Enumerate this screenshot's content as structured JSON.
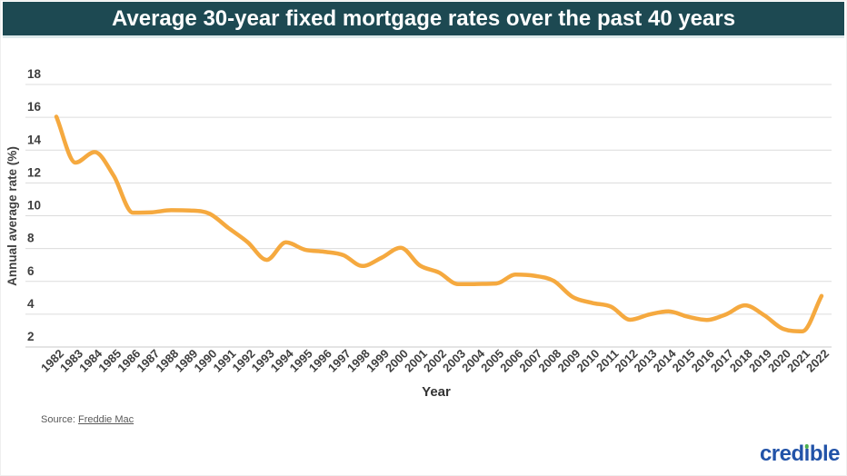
{
  "header": {
    "title": "Average 30-year fixed mortgage rates over the past 40 years",
    "bg_color": "#1D4952",
    "text_color": "#FFFFFF"
  },
  "chart_data": {
    "type": "line",
    "title": "Average 30-year fixed mortgage rates over the past 40 years",
    "xlabel": "Year",
    "ylabel": "Annual average rate (%)",
    "x": [
      1982,
      1983,
      1984,
      1985,
      1986,
      1987,
      1988,
      1989,
      1990,
      1991,
      1992,
      1993,
      1994,
      1995,
      1996,
      1997,
      1998,
      1999,
      2000,
      2001,
      2002,
      2003,
      2004,
      2005,
      2006,
      2007,
      2008,
      2009,
      2010,
      2011,
      2012,
      2013,
      2014,
      2015,
      2016,
      2017,
      2018,
      2019,
      2020,
      2021,
      2022
    ],
    "series": [
      {
        "name": "30-year fixed mortgage rate",
        "color": "#F5A93F",
        "values": [
          16.04,
          13.24,
          13.88,
          12.43,
          10.19,
          10.21,
          10.34,
          10.32,
          10.13,
          9.25,
          8.39,
          7.31,
          8.38,
          7.93,
          7.81,
          7.6,
          6.94,
          7.44,
          8.05,
          6.97,
          6.54,
          5.83,
          5.84,
          5.87,
          6.41,
          6.34,
          6.03,
          5.04,
          4.69,
          4.45,
          3.66,
          3.98,
          4.17,
          3.85,
          3.65,
          3.99,
          4.54,
          3.94,
          3.1,
          2.96,
          5.11
        ]
      }
    ],
    "ylim": [
      2,
      18
    ],
    "ytick_step": 2,
    "grid": "horizontal",
    "legend": "none",
    "grid_color": "#DCDCDC",
    "axis_line_color": "#C8C8C8",
    "tick_label_color": "#3F3F3F"
  },
  "footer": {
    "source_label": "Source:",
    "source_name": "Freddie Mac",
    "logo": {
      "text": "credible",
      "pre": "cred",
      "dotless_i": "ı",
      "post": "ble",
      "blue": "#2253A8",
      "green": "#4CAE4F"
    }
  }
}
